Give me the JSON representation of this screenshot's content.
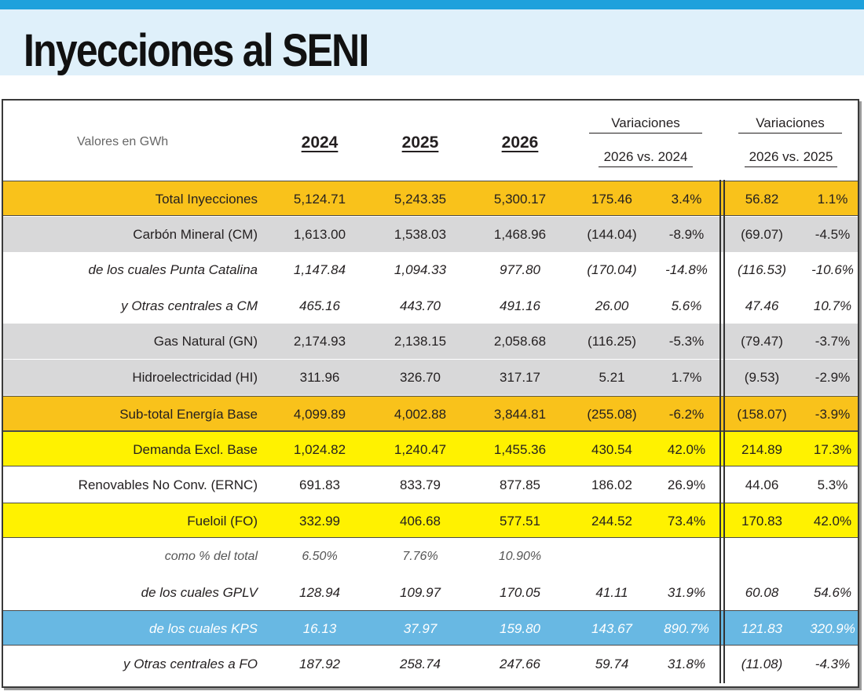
{
  "header": {
    "title": "Inyecciones al SENI",
    "accent_color": "#1ea1dc",
    "band_color": "#dff0fa"
  },
  "table": {
    "unit_label": "Valores en GWh",
    "years": [
      "2024",
      "2025",
      "2026"
    ],
    "variations": [
      {
        "title": "Variaciones",
        "subtitle": "2026 vs. 2024"
      },
      {
        "title": "Variaciones",
        "subtitle": "2026 vs. 2025"
      }
    ],
    "rows": [
      {
        "label": "Total Inyecciones",
        "style": "orange",
        "values": [
          "5,124.71",
          "5,243.35",
          "5,300.17",
          "175.46",
          "3.4%",
          "56.82",
          "1.1%"
        ]
      },
      {
        "label": "Carbón Mineral (CM)",
        "style": "gray",
        "values": [
          "1,613.00",
          "1,538.03",
          "1,468.96",
          "(144.04)",
          "-8.9%",
          "(69.07)",
          "-4.5%"
        ]
      },
      {
        "label": "de los cuales Punta Catalina",
        "style": "italic",
        "values": [
          "1,147.84",
          "1,094.33",
          "977.80",
          "(170.04)",
          "-14.8%",
          "(116.53)",
          "-10.6%"
        ]
      },
      {
        "label": "y Otras centrales a CM",
        "style": "italic",
        "values": [
          "465.16",
          "443.70",
          "491.16",
          "26.00",
          "5.6%",
          "47.46",
          "10.7%"
        ]
      },
      {
        "label": "Gas Natural (GN)",
        "style": "gray",
        "values": [
          "2,174.93",
          "2,138.15",
          "2,058.68",
          "(116.25)",
          "-5.3%",
          "(79.47)",
          "-3.7%"
        ]
      },
      {
        "label": "Hidroelectricidad (HI)",
        "style": "gray",
        "values": [
          "311.96",
          "326.70",
          "317.17",
          "5.21",
          "1.7%",
          "(9.53)",
          "-2.9%"
        ]
      },
      {
        "label": "Sub-total Energía Base",
        "style": "orange",
        "values": [
          "4,099.89",
          "4,002.88",
          "3,844.81",
          "(255.08)",
          "-6.2%",
          "(158.07)",
          "-3.9%"
        ]
      },
      {
        "label": "Demanda Excl. Base",
        "style": "yellow",
        "values": [
          "1,024.82",
          "1,240.47",
          "1,455.36",
          "430.54",
          "42.0%",
          "214.89",
          "17.3%"
        ]
      },
      {
        "label": "Renovables No Conv. (ERNC)",
        "style": "plain",
        "values": [
          "691.83",
          "833.79",
          "877.85",
          "186.02",
          "26.9%",
          "44.06",
          "5.3%"
        ]
      },
      {
        "label": "Fueloil (FO)",
        "style": "yellow",
        "values": [
          "332.99",
          "406.68",
          "577.51",
          "244.52",
          "73.4%",
          "170.83",
          "42.0%"
        ]
      },
      {
        "label": "como % del total",
        "style": "pct",
        "values": [
          "6.50%",
          "7.76%",
          "10.90%",
          "",
          "",
          "",
          ""
        ]
      },
      {
        "label": "de los cuales GPLV",
        "style": "italic",
        "values": [
          "128.94",
          "109.97",
          "170.05",
          "41.11",
          "31.9%",
          "60.08",
          "54.6%"
        ]
      },
      {
        "label": "de los cuales KPS",
        "style": "blue",
        "values": [
          "16.13",
          "37.97",
          "159.80",
          "143.67",
          "890.7%",
          "121.83",
          "320.9%"
        ]
      },
      {
        "label": "y Otras centrales a FO",
        "style": "italic",
        "values": [
          "187.92",
          "258.74",
          "247.66",
          "59.74",
          "31.8%",
          "(11.08)",
          "-4.3%"
        ]
      }
    ]
  },
  "colors": {
    "orange": "#f9c21b",
    "yellow": "#fff200",
    "gray": "#d8d8d9",
    "blue": "#68b8e3",
    "plain": "#ffffff"
  }
}
